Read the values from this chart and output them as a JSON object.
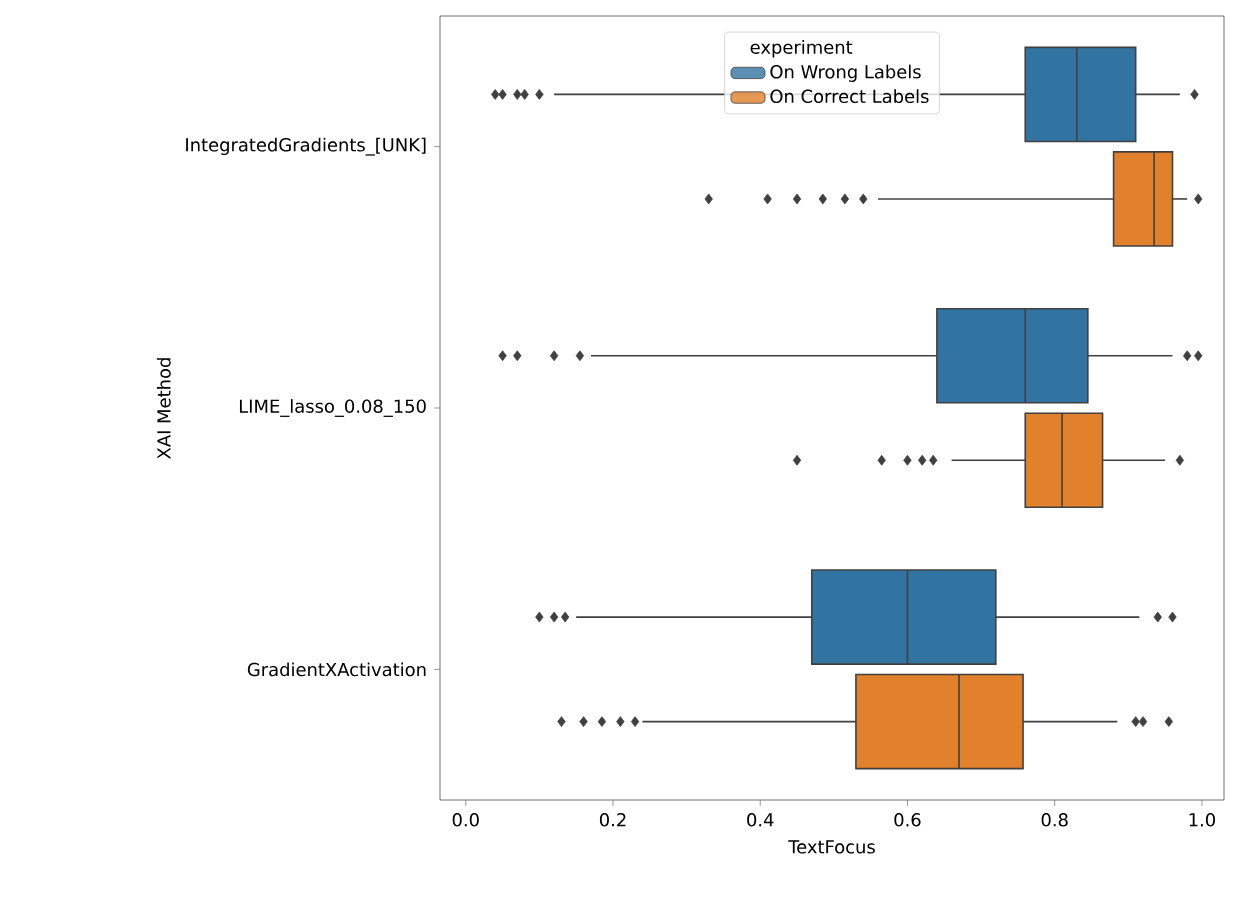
{
  "chart_data": {
    "type": "box",
    "orientation": "horizontal",
    "xlabel": "TextFocus",
    "ylabel": "XAI Method",
    "legend_title": "experiment",
    "legend": "top",
    "categories": [
      "IntegratedGradients_[UNK]",
      "LIME_lasso_0.08_150",
      "GradientXActivation"
    ],
    "xlim": [
      -0.035,
      1.03
    ],
    "xticks": [
      {
        "value": 0,
        "label": "0.0"
      },
      {
        "value": 0.2,
        "label": "0.2"
      },
      {
        "value": 0.4,
        "label": "0.4"
      },
      {
        "value": 0.6,
        "label": "0.6"
      },
      {
        "value": 0.8,
        "label": "0.8"
      },
      {
        "value": 1,
        "label": "1.0"
      }
    ],
    "series": [
      {
        "name": "On Wrong Labels",
        "color": "#3274a1",
        "boxes": [
          {
            "low": 0.12,
            "q1": 0.76,
            "median": 0.83,
            "q3": 0.91,
            "high": 0.97,
            "outliers": [
              0.04,
              0.05,
              0.07,
              0.08,
              0.1,
              0.99
            ]
          },
          {
            "low": 0.17,
            "q1": 0.64,
            "median": 0.76,
            "q3": 0.845,
            "high": 0.96,
            "outliers": [
              0.05,
              0.07,
              0.12,
              0.155,
              0.98,
              0.995
            ]
          },
          {
            "low": 0.15,
            "q1": 0.47,
            "median": 0.6,
            "q3": 0.72,
            "high": 0.915,
            "outliers": [
              0.1,
              0.12,
              0.135,
              0.94,
              0.96
            ]
          }
        ]
      },
      {
        "name": "On Correct Labels",
        "color": "#e1812c",
        "boxes": [
          {
            "low": 0.56,
            "q1": 0.88,
            "median": 0.935,
            "q3": 0.96,
            "high": 0.98,
            "outliers": [
              0.33,
              0.41,
              0.45,
              0.485,
              0.515,
              0.54,
              0.995
            ]
          },
          {
            "low": 0.66,
            "q1": 0.76,
            "median": 0.81,
            "q3": 0.865,
            "high": 0.95,
            "outliers": [
              0.45,
              0.565,
              0.6,
              0.62,
              0.635,
              0.97
            ]
          },
          {
            "low": 0.24,
            "q1": 0.53,
            "median": 0.67,
            "q3": 0.757,
            "high": 0.885,
            "outliers": [
              0.13,
              0.16,
              0.185,
              0.21,
              0.23,
              0.91,
              0.92,
              0.955
            ]
          }
        ]
      }
    ]
  }
}
